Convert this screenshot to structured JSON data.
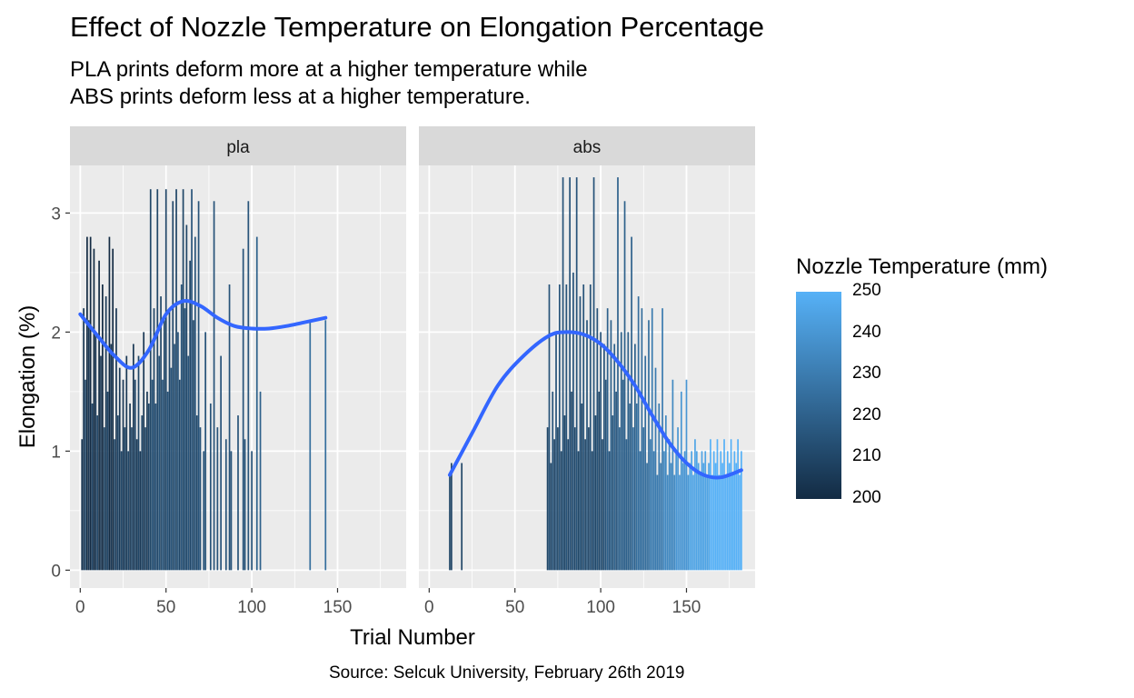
{
  "chart_data": {
    "type": "bar",
    "title": "Effect of Nozzle Temperature on Elongation Percentage",
    "subtitle": [
      "PLA prints deform more at a higher temperature while",
      "ABS prints deform less at a higher temperature."
    ],
    "caption": "Source: Selcuk University, February 26th 2019",
    "xlabel": "Trial Number",
    "ylabel": "Elongation (%)",
    "xlim": [
      -6,
      190
    ],
    "ylim": [
      -0.15,
      3.4
    ],
    "x_ticks": [
      0,
      50,
      100,
      150
    ],
    "y_ticks": [
      0,
      1,
      2,
      3
    ],
    "grid": true,
    "legend": {
      "title": "Nozzle Temperature (mm)",
      "type": "gradient",
      "low": 200,
      "high": 250,
      "low_color": "#132B43",
      "high_color": "#56B1F7",
      "ticks": [
        200,
        210,
        220,
        230,
        240,
        250
      ],
      "position": "right"
    },
    "smooth_color": "#3366FF",
    "panels": [
      {
        "label": "pla",
        "bars": [
          [
            1,
            1.1,
            205
          ],
          [
            2,
            2.2,
            205
          ],
          [
            3,
            1.6,
            210
          ],
          [
            4,
            2.8,
            200
          ],
          [
            5,
            2.1,
            205
          ],
          [
            6,
            2.8,
            200
          ],
          [
            7,
            1.4,
            210
          ],
          [
            8,
            2.7,
            200
          ],
          [
            9,
            2.0,
            205
          ],
          [
            10,
            1.3,
            210
          ],
          [
            11,
            2.6,
            200
          ],
          [
            12,
            1.8,
            205
          ],
          [
            13,
            2.4,
            200
          ],
          [
            14,
            1.2,
            210
          ],
          [
            15,
            2.3,
            205
          ],
          [
            16,
            1.5,
            210
          ],
          [
            17,
            2.8,
            200
          ],
          [
            18,
            1.9,
            205
          ],
          [
            19,
            2.7,
            200
          ],
          [
            20,
            1.1,
            210
          ],
          [
            21,
            2.2,
            205
          ],
          [
            22,
            1.3,
            210
          ],
          [
            23,
            1.7,
            205
          ],
          [
            24,
            1.0,
            210
          ],
          [
            25,
            1.6,
            205
          ],
          [
            26,
            1.2,
            210
          ],
          [
            27,
            1.8,
            205
          ],
          [
            28,
            1.0,
            210
          ],
          [
            29,
            1.4,
            205
          ],
          [
            30,
            1.2,
            210
          ],
          [
            31,
            1.9,
            205
          ],
          [
            32,
            1.6,
            210
          ],
          [
            33,
            1.1,
            205
          ],
          [
            34,
            1.8,
            210
          ],
          [
            35,
            1.0,
            205
          ],
          [
            36,
            1.3,
            210
          ],
          [
            37,
            2.0,
            205
          ],
          [
            38,
            1.2,
            210
          ],
          [
            39,
            1.5,
            205
          ],
          [
            40,
            1.4,
            210
          ],
          [
            41,
            3.2,
            210
          ],
          [
            42,
            1.6,
            215
          ],
          [
            43,
            2.2,
            210
          ],
          [
            44,
            1.4,
            215
          ],
          [
            45,
            3.2,
            210
          ],
          [
            46,
            1.8,
            215
          ],
          [
            47,
            2.3,
            210
          ],
          [
            48,
            1.6,
            215
          ],
          [
            49,
            2.1,
            210
          ],
          [
            50,
            3.2,
            210
          ],
          [
            51,
            1.5,
            215
          ],
          [
            52,
            2.2,
            210
          ],
          [
            53,
            1.7,
            215
          ],
          [
            54,
            3.1,
            210
          ],
          [
            55,
            1.9,
            215
          ],
          [
            56,
            3.2,
            210
          ],
          [
            57,
            2.0,
            215
          ],
          [
            58,
            1.6,
            210
          ],
          [
            59,
            2.4,
            215
          ],
          [
            60,
            3.2,
            210
          ],
          [
            61,
            2.2,
            215
          ],
          [
            62,
            2.9,
            210
          ],
          [
            63,
            1.8,
            215
          ],
          [
            64,
            2.6,
            210
          ],
          [
            65,
            3.2,
            215
          ],
          [
            66,
            2.1,
            210
          ],
          [
            67,
            2.8,
            215
          ],
          [
            68,
            1.3,
            210
          ],
          [
            69,
            3.1,
            215
          ],
          [
            70,
            1.2,
            215
          ],
          [
            72,
            1.0,
            215
          ],
          [
            73,
            2.0,
            215
          ],
          [
            76,
            1.4,
            215
          ],
          [
            78,
            3.1,
            215
          ],
          [
            80,
            1.2,
            215
          ],
          [
            82,
            1.8,
            215
          ],
          [
            85,
            1.1,
            215
          ],
          [
            87,
            2.4,
            215
          ],
          [
            88,
            1.0,
            215
          ],
          [
            92,
            1.3,
            215
          ],
          [
            95,
            2.7,
            215
          ],
          [
            96,
            1.1,
            215
          ],
          [
            98,
            3.1,
            215
          ],
          [
            100,
            1.0,
            215
          ],
          [
            103,
            2.8,
            220
          ],
          [
            105,
            1.5,
            220
          ],
          [
            134,
            2.1,
            225
          ],
          [
            143,
            2.1,
            225
          ]
        ],
        "smooth": [
          [
            0,
            2.15
          ],
          [
            10,
            1.97
          ],
          [
            20,
            1.8
          ],
          [
            30,
            1.7
          ],
          [
            40,
            1.85
          ],
          [
            50,
            2.15
          ],
          [
            60,
            2.26
          ],
          [
            70,
            2.22
          ],
          [
            80,
            2.12
          ],
          [
            90,
            2.05
          ],
          [
            100,
            2.03
          ],
          [
            110,
            2.03
          ],
          [
            120,
            2.05
          ],
          [
            130,
            2.08
          ],
          [
            143,
            2.12
          ]
        ]
      },
      {
        "label": "abs",
        "bars": [
          [
            12,
            0.8,
            210
          ],
          [
            13,
            0.9,
            210
          ],
          [
            19,
            0.9,
            210
          ],
          [
            69,
            1.2,
            210
          ],
          [
            70,
            2.4,
            215
          ],
          [
            71,
            0.9,
            210
          ],
          [
            72,
            1.5,
            215
          ],
          [
            73,
            1.1,
            210
          ],
          [
            74,
            2.0,
            215
          ],
          [
            75,
            1.2,
            210
          ],
          [
            76,
            2.4,
            215
          ],
          [
            77,
            1.0,
            210
          ],
          [
            78,
            3.3,
            215
          ],
          [
            79,
            1.3,
            210
          ],
          [
            80,
            2.4,
            215
          ],
          [
            81,
            1.1,
            210
          ],
          [
            82,
            3.3,
            215
          ],
          [
            83,
            1.5,
            210
          ],
          [
            84,
            2.5,
            215
          ],
          [
            85,
            1.2,
            210
          ],
          [
            86,
            3.3,
            215
          ],
          [
            87,
            1.0,
            210
          ],
          [
            88,
            2.3,
            215
          ],
          [
            89,
            1.4,
            210
          ],
          [
            90,
            2.4,
            215
          ],
          [
            91,
            1.1,
            210
          ],
          [
            92,
            2.1,
            215
          ],
          [
            93,
            1.2,
            210
          ],
          [
            94,
            2.4,
            215
          ],
          [
            95,
            1.0,
            210
          ],
          [
            96,
            3.3,
            215
          ],
          [
            97,
            1.3,
            210
          ],
          [
            98,
            2.2,
            215
          ],
          [
            99,
            1.5,
            210
          ],
          [
            100,
            2.0,
            215
          ],
          [
            101,
            1.1,
            210
          ],
          [
            102,
            1.9,
            215
          ],
          [
            103,
            1.6,
            215
          ],
          [
            104,
            2.2,
            220
          ],
          [
            105,
            1.0,
            215
          ],
          [
            106,
            2.1,
            220
          ],
          [
            107,
            1.3,
            215
          ],
          [
            108,
            1.9,
            220
          ],
          [
            109,
            1.5,
            215
          ],
          [
            110,
            3.3,
            220
          ],
          [
            111,
            1.2,
            220
          ],
          [
            112,
            2.0,
            220
          ],
          [
            113,
            1.6,
            220
          ],
          [
            114,
            3.1,
            220
          ],
          [
            115,
            1.1,
            220
          ],
          [
            116,
            2.0,
            220
          ],
          [
            117,
            1.4,
            220
          ],
          [
            118,
            2.8,
            220
          ],
          [
            119,
            1.2,
            225
          ],
          [
            120,
            1.9,
            220
          ],
          [
            121,
            1.4,
            225
          ],
          [
            122,
            2.3,
            225
          ],
          [
            123,
            1.0,
            225
          ],
          [
            124,
            2.2,
            225
          ],
          [
            125,
            1.2,
            225
          ],
          [
            126,
            1.8,
            225
          ],
          [
            127,
            0.9,
            225
          ],
          [
            128,
            2.1,
            225
          ],
          [
            129,
            1.1,
            230
          ],
          [
            130,
            2.2,
            230
          ],
          [
            131,
            1.0,
            230
          ],
          [
            132,
            1.7,
            230
          ],
          [
            133,
            0.8,
            230
          ],
          [
            134,
            1.4,
            230
          ],
          [
            135,
            0.9,
            230
          ],
          [
            136,
            2.2,
            230
          ],
          [
            137,
            1.0,
            235
          ],
          [
            138,
            1.3,
            235
          ],
          [
            139,
            0.8,
            235
          ],
          [
            140,
            1.1,
            235
          ],
          [
            141,
            0.9,
            235
          ],
          [
            142,
            1.6,
            235
          ],
          [
            143,
            0.8,
            235
          ],
          [
            144,
            1.0,
            240
          ],
          [
            145,
            1.2,
            240
          ],
          [
            146,
            0.8,
            240
          ],
          [
            147,
            1.5,
            240
          ],
          [
            148,
            0.9,
            240
          ],
          [
            149,
            1.0,
            240
          ],
          [
            150,
            1.6,
            240
          ],
          [
            151,
            0.8,
            240
          ],
          [
            152,
            0.9,
            245
          ],
          [
            153,
            1.0,
            245
          ],
          [
            154,
            0.8,
            245
          ],
          [
            155,
            1.1,
            245
          ],
          [
            156,
            1.0,
            245
          ],
          [
            157,
            0.9,
            245
          ],
          [
            158,
            0.8,
            245
          ],
          [
            159,
            1.0,
            245
          ],
          [
            160,
            0.9,
            245
          ],
          [
            161,
            1.0,
            245
          ],
          [
            162,
            0.8,
            245
          ],
          [
            163,
            0.9,
            245
          ],
          [
            164,
            1.1,
            250
          ],
          [
            165,
            0.8,
            250
          ],
          [
            166,
            1.0,
            250
          ],
          [
            167,
            0.9,
            250
          ],
          [
            168,
            1.1,
            250
          ],
          [
            169,
            0.8,
            250
          ],
          [
            170,
            1.0,
            250
          ],
          [
            171,
            0.9,
            250
          ],
          [
            172,
            1.1,
            250
          ],
          [
            173,
            0.8,
            250
          ],
          [
            174,
            1.0,
            250
          ],
          [
            175,
            0.9,
            250
          ],
          [
            176,
            1.1,
            250
          ],
          [
            177,
            0.8,
            250
          ],
          [
            178,
            1.0,
            250
          ],
          [
            179,
            0.9,
            250
          ],
          [
            180,
            1.1,
            250
          ],
          [
            181,
            0.8,
            250
          ],
          [
            182,
            1.0,
            250
          ]
        ],
        "smooth": [
          [
            12,
            0.8
          ],
          [
            25,
            1.15
          ],
          [
            40,
            1.55
          ],
          [
            55,
            1.8
          ],
          [
            70,
            1.97
          ],
          [
            80,
            2.0
          ],
          [
            90,
            1.98
          ],
          [
            100,
            1.9
          ],
          [
            110,
            1.75
          ],
          [
            120,
            1.55
          ],
          [
            130,
            1.3
          ],
          [
            140,
            1.07
          ],
          [
            150,
            0.9
          ],
          [
            160,
            0.8
          ],
          [
            170,
            0.78
          ],
          [
            182,
            0.84
          ]
        ]
      }
    ]
  }
}
